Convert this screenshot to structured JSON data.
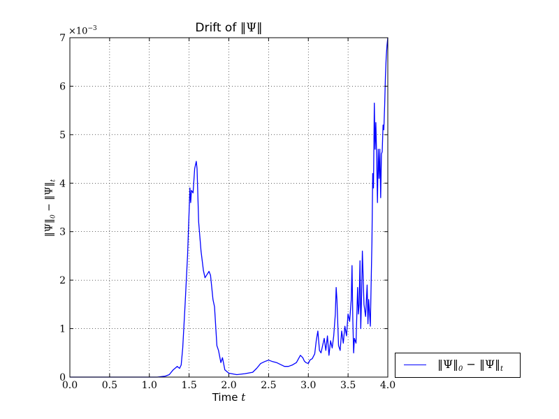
{
  "chart_data": {
    "type": "line",
    "title_prefix": "Drift of ",
    "title_math": "‖Ψ‖",
    "xlabel_prefix": "Time ",
    "xlabel_math": "t",
    "ylabel_main": "‖Ψ‖",
    "ylabel_sub0": "0",
    "ylabel_mid": " − ‖Ψ‖",
    "ylabel_subt": "t",
    "y_multiplier_base": "×10",
    "y_multiplier_exp": "−3",
    "xlim": [
      0.0,
      4.0
    ],
    "ylim": [
      0,
      7
    ],
    "xticks": [
      "0.0",
      "0.5",
      "1.0",
      "1.5",
      "2.0",
      "2.5",
      "3.0",
      "3.5",
      "4.0"
    ],
    "yticks": [
      "0",
      "1",
      "2",
      "3",
      "4",
      "5",
      "6",
      "7"
    ],
    "grid": true,
    "legend_position": "outside-lower-right",
    "series": [
      {
        "name_main": "‖Ψ‖",
        "name_sub0": "0",
        "name_mid": " − ‖Ψ‖",
        "name_subt": "t",
        "color": "#0000ff",
        "x": [
          0.0,
          0.5,
          1.0,
          1.1,
          1.2,
          1.25,
          1.3,
          1.35,
          1.38,
          1.4,
          1.42,
          1.45,
          1.48,
          1.5,
          1.51,
          1.52,
          1.53,
          1.55,
          1.57,
          1.59,
          1.6,
          1.62,
          1.65,
          1.68,
          1.7,
          1.72,
          1.75,
          1.77,
          1.8,
          1.82,
          1.85,
          1.87,
          1.9,
          1.92,
          1.95,
          2.0,
          2.1,
          2.2,
          2.3,
          2.35,
          2.4,
          2.45,
          2.5,
          2.55,
          2.6,
          2.65,
          2.7,
          2.75,
          2.8,
          2.85,
          2.9,
          2.93,
          2.95,
          2.97,
          3.0,
          3.02,
          3.05,
          3.08,
          3.1,
          3.12,
          3.14,
          3.16,
          3.18,
          3.2,
          3.22,
          3.24,
          3.26,
          3.28,
          3.3,
          3.32,
          3.34,
          3.35,
          3.36,
          3.38,
          3.4,
          3.42,
          3.44,
          3.46,
          3.48,
          3.5,
          3.52,
          3.54,
          3.55,
          3.56,
          3.57,
          3.58,
          3.6,
          3.62,
          3.63,
          3.64,
          3.65,
          3.66,
          3.67,
          3.68,
          3.7,
          3.72,
          3.74,
          3.75,
          3.76,
          3.78,
          3.8,
          3.81,
          3.82,
          3.83,
          3.84,
          3.85,
          3.86,
          3.87,
          3.88,
          3.89,
          3.9,
          3.91,
          3.92,
          3.93,
          3.94,
          3.95,
          3.96,
          3.97,
          3.98,
          3.99,
          4.0
        ],
        "values": [
          0.0,
          0.0,
          0.0,
          0.0,
          0.02,
          0.05,
          0.15,
          0.22,
          0.18,
          0.25,
          0.6,
          1.5,
          2.5,
          3.4,
          3.9,
          3.6,
          3.85,
          3.8,
          4.3,
          4.45,
          4.3,
          3.2,
          2.6,
          2.2,
          2.05,
          2.1,
          2.18,
          2.1,
          1.6,
          1.45,
          0.65,
          0.55,
          0.3,
          0.4,
          0.15,
          0.08,
          0.05,
          0.07,
          0.1,
          0.18,
          0.28,
          0.32,
          0.35,
          0.32,
          0.3,
          0.26,
          0.22,
          0.22,
          0.25,
          0.3,
          0.45,
          0.4,
          0.33,
          0.3,
          0.28,
          0.35,
          0.38,
          0.48,
          0.75,
          0.95,
          0.55,
          0.5,
          0.65,
          0.8,
          0.55,
          0.85,
          0.45,
          0.75,
          0.6,
          0.85,
          1.3,
          1.85,
          1.6,
          0.65,
          0.55,
          0.95,
          0.7,
          1.05,
          0.85,
          1.3,
          1.15,
          1.6,
          2.3,
          1.2,
          0.5,
          0.8,
          0.7,
          1.85,
          1.3,
          1.5,
          2.4,
          1.0,
          1.7,
          2.6,
          1.5,
          1.25,
          1.9,
          1.1,
          1.6,
          1.05,
          2.8,
          4.2,
          3.9,
          5.65,
          4.7,
          5.25,
          4.5,
          3.6,
          4.7,
          4.1,
          4.7,
          3.7,
          4.6,
          4.65,
          5.2,
          5.1,
          5.6,
          6.2,
          6.6,
          6.85,
          7.0
        ]
      }
    ]
  }
}
